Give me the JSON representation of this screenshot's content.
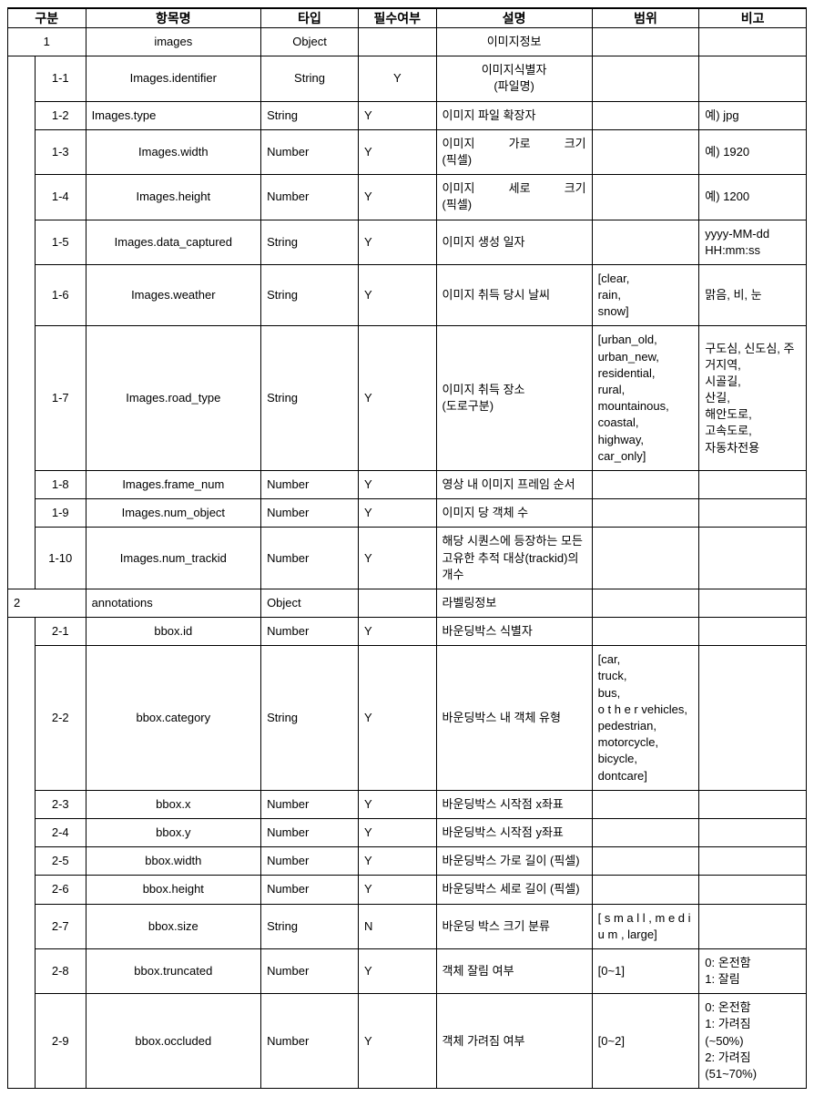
{
  "headers": {
    "category": "구분",
    "item": "항목명",
    "type": "타입",
    "required": "필수여부",
    "desc": "설명",
    "range": "범위",
    "note": "비고"
  },
  "rows": [
    {
      "kind": "parent",
      "num": "1",
      "item": "images",
      "item_align": "center",
      "type": "Object",
      "type_align": "center",
      "req": "",
      "req_align": "center",
      "desc": "이미지정보",
      "desc_align": "center",
      "range": "",
      "note": ""
    },
    {
      "kind": "child",
      "parent": "1",
      "span_first": true,
      "num": "1-1",
      "item": "Images.identifier",
      "item_align": "center",
      "type": "String",
      "type_align": "center",
      "req": "Y",
      "req_align": "center",
      "desc": "이미지식별자\n(파일명)",
      "desc_align": "center",
      "range": "",
      "note": ""
    },
    {
      "kind": "child",
      "parent": "1",
      "num": "1-2",
      "item": "Images.type",
      "item_align": "left",
      "type": "String",
      "type_align": "left",
      "req": "Y",
      "req_align": "left",
      "desc": "이미지 파일 확장자",
      "desc_align": "left",
      "range": "",
      "note": "예) jpg"
    },
    {
      "kind": "child",
      "parent": "1",
      "num": "1-3",
      "item": "Images.width",
      "item_align": "center",
      "type": "Number",
      "type_align": "left",
      "req": "Y",
      "req_align": "left",
      "desc": "이미지 가로 크기\n(픽셀)",
      "desc_align": "justify",
      "range": "",
      "note": "예) 1920"
    },
    {
      "kind": "child",
      "parent": "1",
      "num": "1-4",
      "item": "Images.height",
      "item_align": "center",
      "type": "Number",
      "type_align": "left",
      "req": "Y",
      "req_align": "left",
      "desc": "이미지 세로 크기\n(픽셀)",
      "desc_align": "justify",
      "range": "",
      "note": "예) 1200"
    },
    {
      "kind": "child",
      "parent": "1",
      "num": "1-5",
      "item": "Images.data_captured",
      "item_align": "center",
      "type": "String",
      "type_align": "left",
      "req": "Y",
      "req_align": "left",
      "desc": "이미지 생성 일자",
      "desc_align": "left",
      "range": "",
      "note": "yyyy-MM-dd HH:mm:ss"
    },
    {
      "kind": "child",
      "parent": "1",
      "num": "1-6",
      "item": "Images.weather",
      "item_align": "center",
      "type": "String",
      "type_align": "left",
      "req": "Y",
      "req_align": "left",
      "desc": "이미지 취득 당시 날씨",
      "desc_align": "left",
      "range": "[clear,\nrain,\nsnow]",
      "note": "맑음, 비, 눈"
    },
    {
      "kind": "child",
      "parent": "1",
      "num": "1-7",
      "item": "Images.road_type",
      "item_align": "center",
      "type": "String",
      "type_align": "left",
      "req": "Y",
      "req_align": "left",
      "desc": "이미지 취득 장소\n(도로구분)",
      "desc_align": "left",
      "range": "[urban_old,\nurban_new,\nresidential,\nrural,\nmountainous,\ncoastal,\nhighway,\ncar_only]",
      "note": "구도심, 신도심, 주거지역,\n시골길,\n산길,\n해안도로,\n고속도로,\n자동차전용"
    },
    {
      "kind": "child",
      "parent": "1",
      "num": "1-8",
      "item": "Images.frame_num",
      "item_align": "center",
      "type": "Number",
      "type_align": "left",
      "req": "Y",
      "req_align": "left",
      "desc": "영상 내 이미지 프레임 순서",
      "desc_align": "left",
      "range": "",
      "note": ""
    },
    {
      "kind": "child",
      "parent": "1",
      "num": "1-9",
      "item": "Images.num_object",
      "item_align": "center",
      "type": "Number",
      "type_align": "left",
      "req": "Y",
      "req_align": "left",
      "desc": "이미지 당 객체 수",
      "desc_align": "left",
      "range": "",
      "note": ""
    },
    {
      "kind": "child",
      "parent": "1",
      "num": "1-10",
      "item": "Images.num_trackid",
      "item_align": "center",
      "type": "Number",
      "type_align": "left",
      "req": "Y",
      "req_align": "left",
      "desc": "해당 시퀀스에 등장하는 모든 고유한 추적 대상(trackid)의 개수",
      "desc_align": "left",
      "range": "",
      "note": ""
    },
    {
      "kind": "parent2",
      "num": "2",
      "item": "annotations",
      "item_align": "left",
      "type": "Object",
      "type_align": "left",
      "req": "",
      "req_align": "left",
      "desc": "라벨링정보",
      "desc_align": "left",
      "range": "",
      "note": ""
    },
    {
      "kind": "child",
      "parent": "2",
      "span_first": true,
      "num": "2-1",
      "item": "bbox.id",
      "item_align": "center",
      "type": "Number",
      "type_align": "left",
      "req": "Y",
      "req_align": "left",
      "desc": "바운딩박스 식별자",
      "desc_align": "left",
      "range": "",
      "note": ""
    },
    {
      "kind": "child",
      "parent": "2",
      "num": "2-2",
      "item": "bbox.category",
      "item_align": "center",
      "type": "String",
      "type_align": "left",
      "req": "Y",
      "req_align": "left",
      "desc": "바운딩박스 내 객체 유형",
      "desc_align": "left",
      "range": "[car,\ntruck,\nbus,\no t h e r vehicles,\npedestrian,\nmotorcycle,\nbicycle,\ndontcare]",
      "note": ""
    },
    {
      "kind": "child",
      "parent": "2",
      "num": "2-3",
      "item": "bbox.x",
      "item_align": "center",
      "type": "Number",
      "type_align": "left",
      "req": "Y",
      "req_align": "left",
      "desc": "바운딩박스 시작점 x좌표",
      "desc_align": "left",
      "range": "",
      "note": ""
    },
    {
      "kind": "child",
      "parent": "2",
      "num": "2-4",
      "item": "bbox.y",
      "item_align": "center",
      "type": "Number",
      "type_align": "left",
      "req": "Y",
      "req_align": "left",
      "desc": "바운딩박스 시작점 y좌표",
      "desc_align": "left",
      "range": "",
      "note": ""
    },
    {
      "kind": "child",
      "parent": "2",
      "num": "2-5",
      "item": "bbox.width",
      "item_align": "center",
      "type": "Number",
      "type_align": "left",
      "req": "Y",
      "req_align": "left",
      "desc": "바운딩박스 가로 길이 (픽셀)",
      "desc_align": "left",
      "range": "",
      "note": ""
    },
    {
      "kind": "child",
      "parent": "2",
      "num": "2-6",
      "item": "bbox.height",
      "item_align": "center",
      "type": "Number",
      "type_align": "left",
      "req": "Y",
      "req_align": "left",
      "desc": "바운딩박스 세로 길이 (픽셀)",
      "desc_align": "left",
      "range": "",
      "note": ""
    },
    {
      "kind": "child",
      "parent": "2",
      "num": "2-7",
      "item": "bbox.size",
      "item_align": "center",
      "type": "String",
      "type_align": "left",
      "req": "N",
      "req_align": "left",
      "desc": "바운딩 박스 크기 분류",
      "desc_align": "left",
      "range": "[ s m a l l , m e d i u m , large]",
      "note": ""
    },
    {
      "kind": "child",
      "parent": "2",
      "num": "2-8",
      "item": "bbox.truncated",
      "item_align": "center",
      "type": "Number",
      "type_align": "left",
      "req": "Y",
      "req_align": "left",
      "desc": "객체 잘림 여부",
      "desc_align": "left",
      "range": "[0~1]",
      "note": "0: 온전함\n1: 잘림"
    },
    {
      "kind": "child",
      "parent": "2",
      "num": "2-9",
      "item": "bbox.occluded",
      "item_align": "center",
      "type": "Number",
      "type_align": "left",
      "req": "Y",
      "req_align": "left",
      "desc": "객체 가려짐 여부",
      "desc_align": "left",
      "range": "[0~2]",
      "note": "0: 온전함\n1: 가려짐\n(~50%)\n2: 가려짐\n(51~70%)"
    }
  ],
  "styling": {
    "border_color": "#000000",
    "background_color": "#ffffff",
    "font_family": "Malgun Gothic",
    "header_font_size": 14,
    "body_font_size": 13,
    "double_border_width": 2
  }
}
